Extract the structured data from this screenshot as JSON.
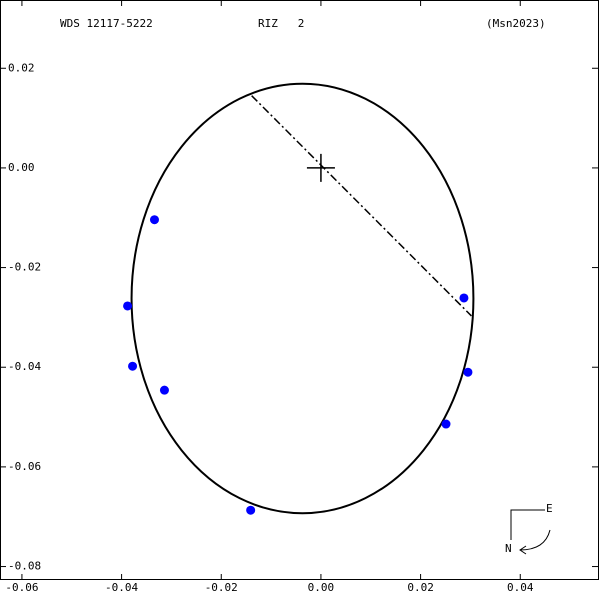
{
  "chart_data": {
    "type": "orbit",
    "title": "WDS 12117-5222",
    "subtitle": "RIZ   2",
    "reference": "(Msn2023)",
    "x": [
      -0.0334,
      -0.0388,
      -0.0378,
      -0.0314,
      -0.0141,
      0.0251,
      0.0295,
      0.0287
    ],
    "values": [
      -0.0104,
      -0.0277,
      -0.0398,
      -0.0446,
      -0.0687,
      -0.0514,
      -0.041,
      -0.0261
    ],
    "color": "#0000ff",
    "orbit": {
      "cx": -0.0037,
      "cy": -0.0262,
      "rx": 0.0343,
      "ry": 0.0431
    },
    "line_of_nodes": {
      "x": [
        -0.0139,
        0.0302
      ],
      "y": [
        0.0145,
        -0.0297
      ]
    },
    "xlim": [
      -0.0644,
      0.0556
    ],
    "ylim": [
      0.0337,
      -0.0827
    ],
    "xticks": [
      -0.06,
      -0.04,
      -0.02,
      {
        "value": 0,
        "label": "0.00"
      },
      0.02,
      0.04
    ],
    "yticks": [
      0.02,
      {
        "value": 0,
        "label": "0.00"
      },
      -0.02,
      -0.04,
      -0.06,
      -0.08
    ],
    "compass": {
      "east": "E",
      "north": "N"
    }
  }
}
